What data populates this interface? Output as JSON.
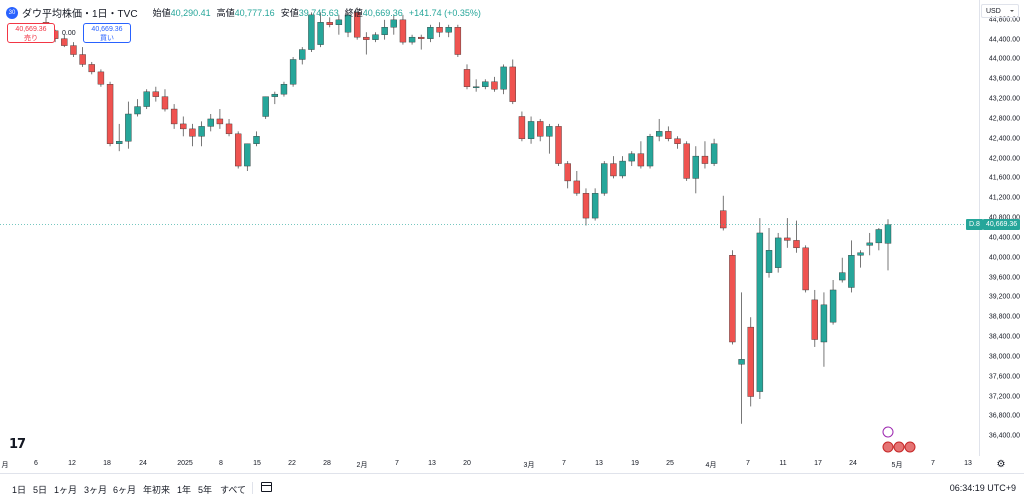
{
  "header": {
    "symbol_badge": "30",
    "title": "ダウ平均株価・1日・TVC",
    "ohlc": [
      {
        "label": "始値",
        "value": "40,290.41"
      },
      {
        "label": "高値",
        "value": "40,777.16"
      },
      {
        "label": "安値",
        "value": "39,745.63"
      },
      {
        "label": "終値",
        "value": "40,669.36"
      }
    ],
    "change": "+141.74 (+0.35%)"
  },
  "trade": {
    "sell_price": "40,669.36",
    "sell_label": "売り",
    "spread": "0.00",
    "buy_price": "40,669.36",
    "buy_label": "買い"
  },
  "price_axis": {
    "currency": "USD",
    "ticks": [
      "44,800.00",
      "44,400.00",
      "44,000.00",
      "43,600.00",
      "43,200.00",
      "42,800.00",
      "42,400.00",
      "42,000.00",
      "41,600.00",
      "41,200.00",
      "40,800.00",
      "40,400.00",
      "40,000.00",
      "39,600.00",
      "39,200.00",
      "38,800.00",
      "38,400.00",
      "38,000.00",
      "37,600.00",
      "37,200.00",
      "36,800.00",
      "36,400.00"
    ],
    "current_price": "40,669.36",
    "current_badge": "D",
    "current_extra": "8"
  },
  "time_axis": {
    "labels": [
      "月",
      "6",
      "12",
      "18",
      "24",
      "2025",
      "8",
      "15",
      "22",
      "28",
      "2月",
      "7",
      "13",
      "20",
      "3月",
      "7",
      "13",
      "19",
      "25",
      "4月",
      "7",
      "11",
      "17",
      "24",
      "5月",
      "7",
      "13"
    ]
  },
  "colors": {
    "up": "#26a69a",
    "down": "#ef5350",
    "accent": "#2962ff"
  },
  "chart_data": {
    "type": "candlestick",
    "ylim": [
      36000,
      45200
    ],
    "candles": [
      [
        44750,
        44850,
        44550,
        44580
      ],
      [
        44580,
        44600,
        44350,
        44420
      ],
      [
        44420,
        44500,
        44250,
        44280
      ],
      [
        44280,
        44350,
        44050,
        44100
      ],
      [
        44100,
        44250,
        43850,
        43900
      ],
      [
        43900,
        43950,
        43700,
        43750
      ],
      [
        43750,
        43800,
        43450,
        43500
      ],
      [
        43500,
        43550,
        42250,
        42300
      ],
      [
        42300,
        42700,
        42150,
        42350
      ],
      [
        42350,
        43150,
        42200,
        42900
      ],
      [
        42900,
        43200,
        42850,
        43050
      ],
      [
        43050,
        43400,
        43000,
        43350
      ],
      [
        43350,
        43450,
        43150,
        43250
      ],
      [
        43250,
        43400,
        42950,
        43000
      ],
      [
        43000,
        43100,
        42600,
        42700
      ],
      [
        42700,
        42850,
        42450,
        42600
      ],
      [
        42600,
        42700,
        42250,
        42450
      ],
      [
        42450,
        42750,
        42250,
        42650
      ],
      [
        42650,
        42900,
        42550,
        42800
      ],
      [
        42800,
        43000,
        42600,
        42700
      ],
      [
        42700,
        42800,
        42450,
        42500
      ],
      [
        42500,
        42550,
        41800,
        41850
      ],
      [
        41850,
        42300,
        41750,
        42300
      ],
      [
        42300,
        42550,
        42250,
        42450
      ],
      [
        42850,
        43250,
        42800,
        43250
      ],
      [
        43250,
        43350,
        43100,
        43300
      ],
      [
        43300,
        43550,
        43250,
        43500
      ],
      [
        43500,
        44050,
        43450,
        44000
      ],
      [
        44000,
        44250,
        43900,
        44200
      ],
      [
        44200,
        44950,
        44150,
        44900
      ],
      [
        44300,
        44950,
        44250,
        44750
      ],
      [
        44750,
        44850,
        44650,
        44700
      ],
      [
        44700,
        44900,
        44500,
        44800
      ],
      [
        44550,
        44950,
        44450,
        44900
      ],
      [
        44950,
        45050,
        44400,
        44450
      ],
      [
        44450,
        44550,
        44100,
        44400
      ],
      [
        44400,
        44550,
        44350,
        44500
      ],
      [
        44500,
        44800,
        44400,
        44650
      ],
      [
        44650,
        44900,
        44500,
        44800
      ],
      [
        44800,
        44900,
        44300,
        44350
      ],
      [
        44350,
        44500,
        44300,
        44450
      ],
      [
        44450,
        44500,
        44200,
        44420
      ],
      [
        44420,
        44700,
        44350,
        44650
      ],
      [
        44650,
        44750,
        44450,
        44550
      ],
      [
        44550,
        44700,
        44450,
        44650
      ],
      [
        44650,
        44700,
        44050,
        44100
      ],
      [
        43800,
        43900,
        43400,
        43450
      ],
      [
        43450,
        43600,
        43350,
        43450
      ],
      [
        43450,
        43600,
        43400,
        43550
      ],
      [
        43550,
        43650,
        43350,
        43400
      ],
      [
        43400,
        43900,
        43300,
        43850
      ],
      [
        43850,
        44000,
        43100,
        43150
      ],
      [
        42850,
        42950,
        42350,
        42400
      ],
      [
        42400,
        42850,
        42300,
        42750
      ],
      [
        42750,
        42800,
        42350,
        42450
      ],
      [
        42450,
        42700,
        42100,
        42650
      ],
      [
        42650,
        42700,
        41850,
        41900
      ],
      [
        41900,
        41950,
        41400,
        41550
      ],
      [
        41550,
        41750,
        41250,
        41300
      ],
      [
        41300,
        41400,
        40650,
        40800
      ],
      [
        40800,
        41400,
        40750,
        41300
      ],
      [
        41300,
        41950,
        41250,
        41900
      ],
      [
        41900,
        42050,
        41600,
        41650
      ],
      [
        41650,
        42050,
        41600,
        41950
      ],
      [
        41950,
        42150,
        41850,
        42100
      ],
      [
        42100,
        42350,
        41800,
        41850
      ],
      [
        41850,
        42500,
        41800,
        42450
      ],
      [
        42450,
        42800,
        42350,
        42550
      ],
      [
        42550,
        42650,
        42350,
        42400
      ],
      [
        42400,
        42450,
        42200,
        42300
      ],
      [
        42300,
        42350,
        41550,
        41600
      ],
      [
        41600,
        42250,
        41300,
        42050
      ],
      [
        42050,
        42350,
        41800,
        41900
      ],
      [
        41900,
        42400,
        41850,
        42300
      ],
      [
        40950,
        41250,
        40550,
        40600
      ],
      [
        40050,
        40150,
        38250,
        38300
      ],
      [
        37850,
        39300,
        36650,
        37950
      ],
      [
        38600,
        38800,
        37000,
        37200
      ],
      [
        37300,
        40800,
        37150,
        40500
      ],
      [
        39700,
        40600,
        39600,
        40150
      ],
      [
        39800,
        40500,
        39700,
        40400
      ],
      [
        40400,
        40800,
        40200,
        40350
      ],
      [
        40350,
        40750,
        40100,
        40200
      ],
      [
        40200,
        40250,
        39300,
        39350
      ],
      [
        39150,
        39350,
        38200,
        38350
      ],
      [
        38300,
        39300,
        37800,
        39050
      ],
      [
        38700,
        39550,
        38650,
        39350
      ],
      [
        39550,
        40000,
        39500,
        39700
      ],
      [
        39400,
        40350,
        39300,
        40050
      ],
      [
        40050,
        40150,
        39800,
        40100
      ],
      [
        40250,
        40500,
        40050,
        40300
      ],
      [
        40300,
        40600,
        40150,
        40570
      ],
      [
        40290,
        40777,
        39746,
        40669
      ]
    ]
  }
}
